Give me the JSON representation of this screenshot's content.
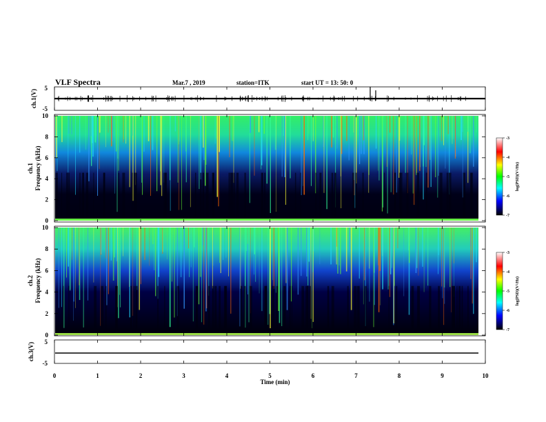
{
  "header": {
    "title": "VLF Spectra",
    "date": "Mar.7 , 2019",
    "station": "station=ITK",
    "start_ut": "start UT =   13: 50: 0"
  },
  "panels": {
    "ch1_wave_label": "ch.1(V)",
    "ch1_spec_label_line1": "ch.1",
    "ch1_spec_label_line2": "Frequency (kHz)",
    "ch2_spec_label_line1": "ch.2",
    "ch2_spec_label_line2": "Frequency (kHz)",
    "ch3_wave_label": "ch.3(V)"
  },
  "colorbar": {
    "label": "log(PSD)(V²/Hz)",
    "ticks": [
      "-3",
      "-4",
      "-5",
      "-6",
      "-7"
    ],
    "colors": [
      "#ffffff",
      "#ff0000",
      "#ffff00",
      "#00ff00",
      "#00ffff",
      "#0000ff",
      "#000000"
    ]
  },
  "chart_data": [
    {
      "type": "line",
      "title": "ch.1(V)",
      "ylabel": "ch.1(V)",
      "ylim": [
        -5,
        5
      ],
      "yticks": [
        "5",
        "-5"
      ],
      "xlim": [
        0,
        10
      ],
      "description_values": {
        "baseline": 0
      }
    },
    {
      "type": "heatmap",
      "ylabel": "Frequency (kHz)",
      "ylim": [
        0,
        10
      ],
      "yticks": [
        "0",
        "2",
        "4",
        "6",
        "8",
        "10"
      ],
      "xlim": [
        0,
        10
      ],
      "zlim": [
        -7,
        -3
      ]
    },
    {
      "type": "heatmap",
      "ylabel": "Frequency (kHz)",
      "ylim": [
        0,
        10
      ],
      "yticks": [
        "0",
        "2",
        "4",
        "6",
        "8",
        "10"
      ],
      "xlim": [
        0,
        10
      ],
      "zlim": [
        -7,
        -3
      ]
    },
    {
      "type": "line",
      "ylabel": "ch.3(V)",
      "ylim": [
        -5,
        5
      ],
      "yticks": [
        "5",
        "-5"
      ],
      "xlim": [
        0,
        10
      ],
      "xlabel": "Time (min)",
      "xticks": [
        "0",
        "1",
        "2",
        "3",
        "4",
        "5",
        "6",
        "7",
        "8",
        "9",
        "10"
      ],
      "description_values": {
        "baseline": 0
      }
    }
  ]
}
